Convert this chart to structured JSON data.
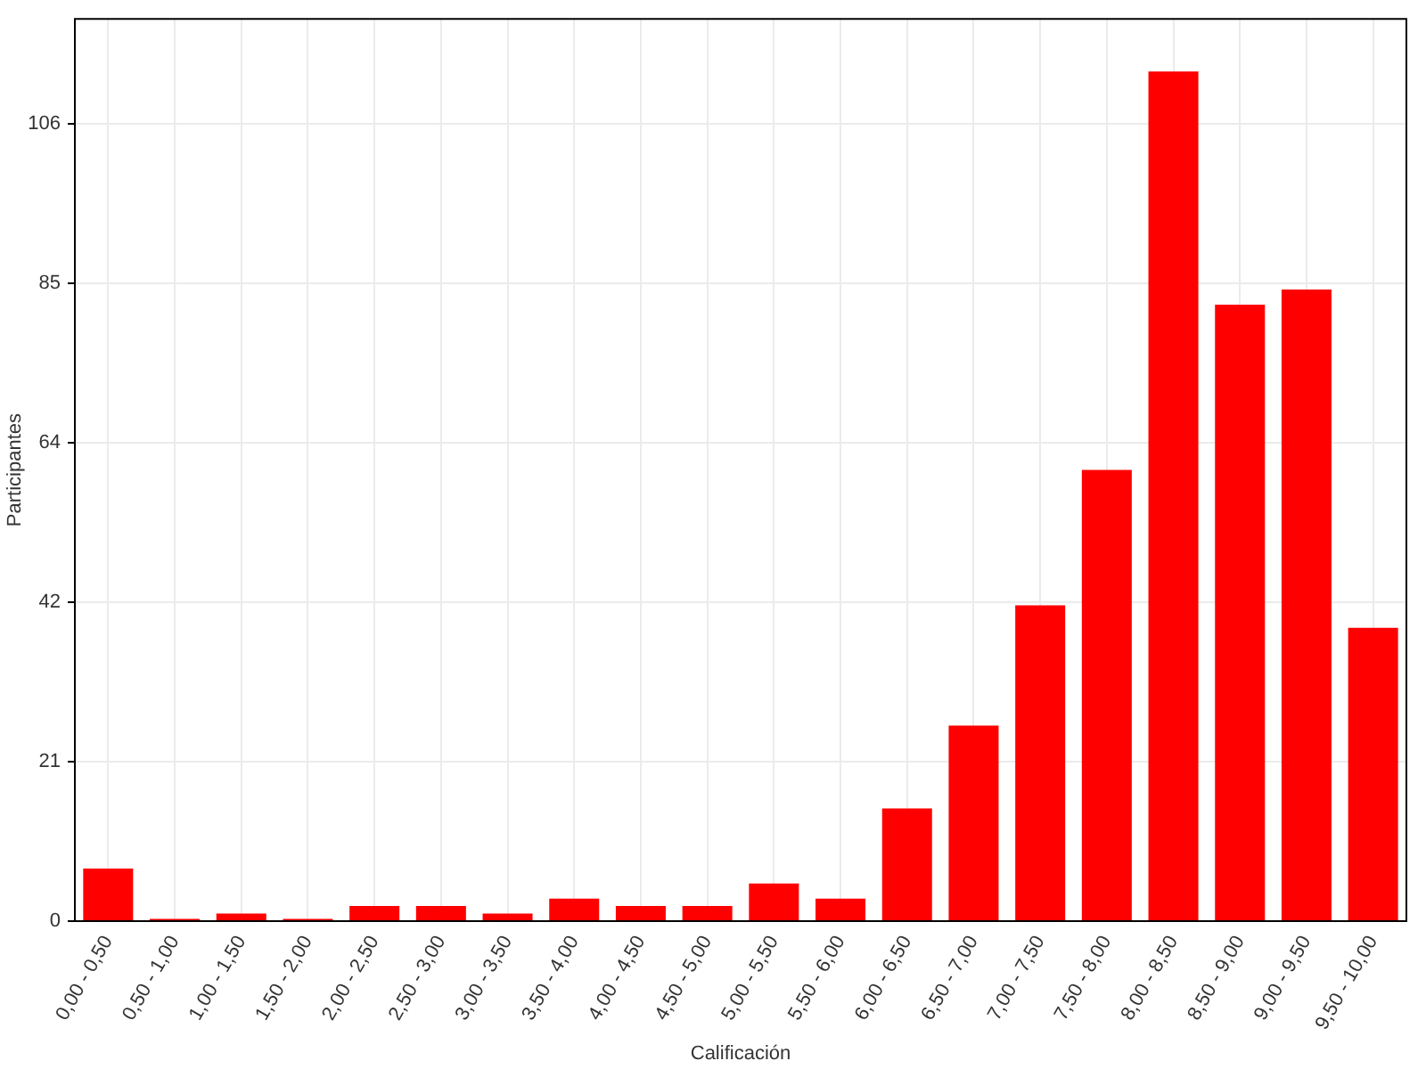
{
  "chart_data": {
    "type": "bar",
    "xlabel": "Calificación",
    "ylabel": "Participantes",
    "categories": [
      "0,00 - 0,50",
      "0,50 - 1,00",
      "1,00 - 1,50",
      "1,50 - 2,00",
      "2,00 - 2,50",
      "2,50 - 3,00",
      "3,00 - 3,50",
      "3,50 - 4,00",
      "4,00 - 4,50",
      "4,50 - 5,00",
      "5,00 - 5,50",
      "5,50 - 6,00",
      "6,00 - 6,50",
      "6,50 - 7,00",
      "7,00 - 7,50",
      "7,50 - 8,00",
      "8,00 - 8,50",
      "8,50 - 9,00",
      "9,00 - 9,50",
      "9,50 - 10,00"
    ],
    "values": [
      7,
      0.3,
      1,
      0.3,
      2,
      2,
      1,
      3,
      2,
      2,
      5,
      3,
      15,
      26,
      42,
      60,
      113,
      82,
      84,
      39
    ],
    "color": "#ff0000",
    "ylim": [
      0,
      120
    ],
    "yticks": [
      0,
      {
        "value": 21.2,
        "label": "21"
      },
      {
        "value": 42.4,
        "label": "42"
      },
      {
        "value": 63.6,
        "label": "64"
      },
      {
        "value": 84.8,
        "label": "85"
      },
      106
    ],
    "grid": true
  }
}
